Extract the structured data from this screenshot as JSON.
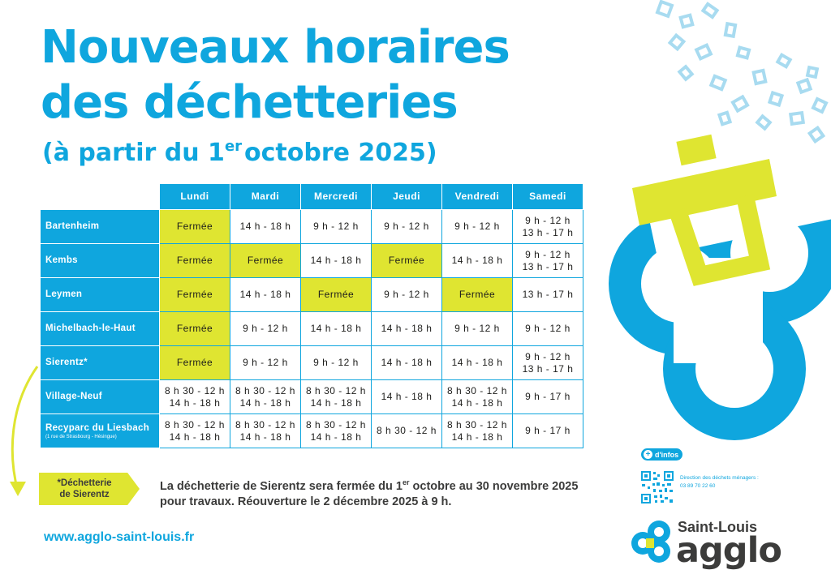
{
  "title_line1": "Nouveaux horaires",
  "title_line2": "des déchetteries",
  "subtitle": {
    "before": "(à partir du 1",
    "sup": "er",
    "after": "octobre 2025)"
  },
  "days": [
    "Lundi",
    "Mardi",
    "Mercredi",
    "Jeudi",
    "Vendredi",
    "Samedi"
  ],
  "closed_label": "Fermée",
  "rows": [
    {
      "site": "Bartenheim",
      "sub": "",
      "cells": [
        [
          "Fermée"
        ],
        [
          "14 h - 18 h"
        ],
        [
          "9 h - 12 h"
        ],
        [
          "9 h - 12 h"
        ],
        [
          "9 h - 12 h"
        ],
        [
          "9 h - 12 h",
          "13 h - 17 h"
        ]
      ],
      "closed": [
        true,
        false,
        false,
        false,
        false,
        false
      ]
    },
    {
      "site": "Kembs",
      "sub": "",
      "cells": [
        [
          "Fermée"
        ],
        [
          "Fermée"
        ],
        [
          "14 h - 18 h"
        ],
        [
          "Fermée"
        ],
        [
          "14 h - 18 h"
        ],
        [
          "9 h - 12 h",
          "13 h - 17 h"
        ]
      ],
      "closed": [
        true,
        true,
        false,
        true,
        false,
        false
      ]
    },
    {
      "site": "Leymen",
      "sub": "",
      "cells": [
        [
          "Fermée"
        ],
        [
          "14 h - 18 h"
        ],
        [
          "Fermée"
        ],
        [
          "9 h - 12 h"
        ],
        [
          "Fermée"
        ],
        [
          "13 h - 17 h"
        ]
      ],
      "closed": [
        true,
        false,
        true,
        false,
        true,
        false
      ]
    },
    {
      "site": "Michelbach-le-Haut",
      "sub": "",
      "cells": [
        [
          "Fermée"
        ],
        [
          "9 h - 12 h"
        ],
        [
          "14 h - 18 h"
        ],
        [
          "14 h - 18 h"
        ],
        [
          "9 h - 12 h"
        ],
        [
          "9 h - 12 h"
        ]
      ],
      "closed": [
        true,
        false,
        false,
        false,
        false,
        false
      ]
    },
    {
      "site": "Sierentz*",
      "sub": "",
      "cells": [
        [
          "Fermée"
        ],
        [
          "9 h - 12 h"
        ],
        [
          "9 h - 12 h"
        ],
        [
          "14 h - 18 h"
        ],
        [
          "14 h - 18 h"
        ],
        [
          "9 h - 12 h",
          "13 h - 17 h"
        ]
      ],
      "closed": [
        true,
        false,
        false,
        false,
        false,
        false
      ]
    },
    {
      "site": "Village-Neuf",
      "sub": "",
      "cells": [
        [
          "8 h 30 - 12 h",
          "14 h - 18 h"
        ],
        [
          "8 h 30 - 12 h",
          "14 h - 18 h"
        ],
        [
          "8 h 30 - 12 h",
          "14 h - 18 h"
        ],
        [
          "14 h - 18 h"
        ],
        [
          "8 h 30 - 12 h",
          "14 h - 18 h"
        ],
        [
          "9 h - 17 h"
        ]
      ],
      "closed": [
        false,
        false,
        false,
        false,
        false,
        false
      ]
    },
    {
      "site": "Recyparc du Liesbach",
      "sub": "(1 rue de Strasbourg - Hésingue)",
      "cells": [
        [
          "8 h 30 - 12 h",
          "14 h - 18 h"
        ],
        [
          "8 h 30 - 12 h",
          "14 h - 18 h"
        ],
        [
          "8 h 30 - 12 h",
          "14 h - 18 h"
        ],
        [
          "8 h 30 - 12 h"
        ],
        [
          "8 h 30 - 12 h",
          "14 h - 18 h"
        ],
        [
          "9 h - 17 h"
        ]
      ],
      "closed": [
        false,
        false,
        false,
        false,
        false,
        false
      ]
    }
  ],
  "tag": {
    "line1": "*Déchetterie",
    "line2": "de Sierentz"
  },
  "notice": {
    "part1": "La déchetterie de Sierentz sera fermée du 1",
    "sup": "er",
    "part2": " octobre au 30 novembre 2025",
    "line2": "pour travaux. Réouverture le 2 décembre 2025 à 9 h."
  },
  "url": "www.agglo-saint-louis.fr",
  "infos": {
    "badge": "d'infos",
    "plus": "+",
    "line1": "Direction des déchets ménagers :",
    "line2": "03 89 70 22 60"
  },
  "logo": {
    "top": "Saint-Louis",
    "bottom": "agglo"
  },
  "colors": {
    "blue": "#0fa6de",
    "yellow": "#dfe531",
    "text": "#3c3c3b"
  }
}
